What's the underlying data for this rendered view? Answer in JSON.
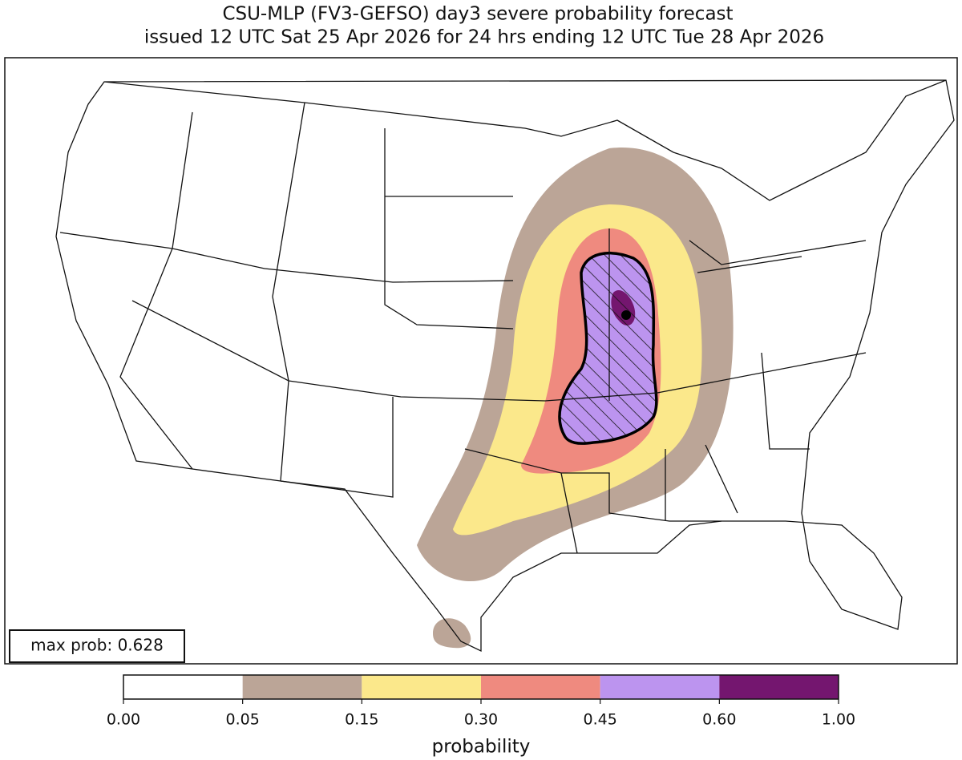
{
  "header": {
    "title_line1": "CSU-MLP (FV3-GEFSO) day3 severe probability forecast",
    "title_line2": "issued 12 UTC Sat 25 Apr 2026 for 24 hrs ending 12 UTC Tue 28 Apr 2026"
  },
  "map": {
    "annotation": "max prob: 0.628"
  },
  "colorbar": {
    "label": "probability",
    "ticks": [
      {
        "value": 0,
        "label": "0.00"
      },
      {
        "value": 0.05,
        "label": "0.05"
      },
      {
        "value": 0.15,
        "label": "0.15"
      },
      {
        "value": 0.3,
        "label": "0.30"
      },
      {
        "value": 0.45,
        "label": "0.45"
      },
      {
        "value": 0.6,
        "label": "0.60"
      },
      {
        "value": 1,
        "label": "1.00"
      }
    ],
    "colors": [
      "#ffffff",
      "#bba597",
      "#fbe88b",
      "#ef8a7f",
      "#bc94ef",
      "#74166f"
    ]
  }
}
